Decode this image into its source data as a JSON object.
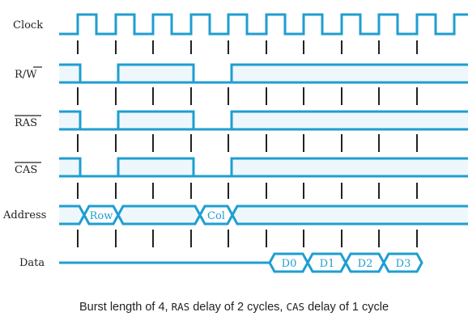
{
  "signals": {
    "clock": "Clock",
    "rw_prefix": "R/",
    "rw_bar": "W",
    "ras": "RAS",
    "cas": "CAS",
    "address": "Address",
    "data": "Data"
  },
  "address_values": [
    "Row",
    "Col"
  ],
  "data_values": [
    "D0",
    "D1",
    "D2",
    "D3"
  ],
  "caption": {
    "part1": "Burst length of 4, ",
    "ras": "RAS",
    "part2": " delay of 2 cycles, ",
    "cas": "CAS",
    "part3": " delay of 1 cycle"
  },
  "colors": {
    "signal": "#1f9ed1",
    "shade": "#eef7fc",
    "text": "#222222"
  }
}
